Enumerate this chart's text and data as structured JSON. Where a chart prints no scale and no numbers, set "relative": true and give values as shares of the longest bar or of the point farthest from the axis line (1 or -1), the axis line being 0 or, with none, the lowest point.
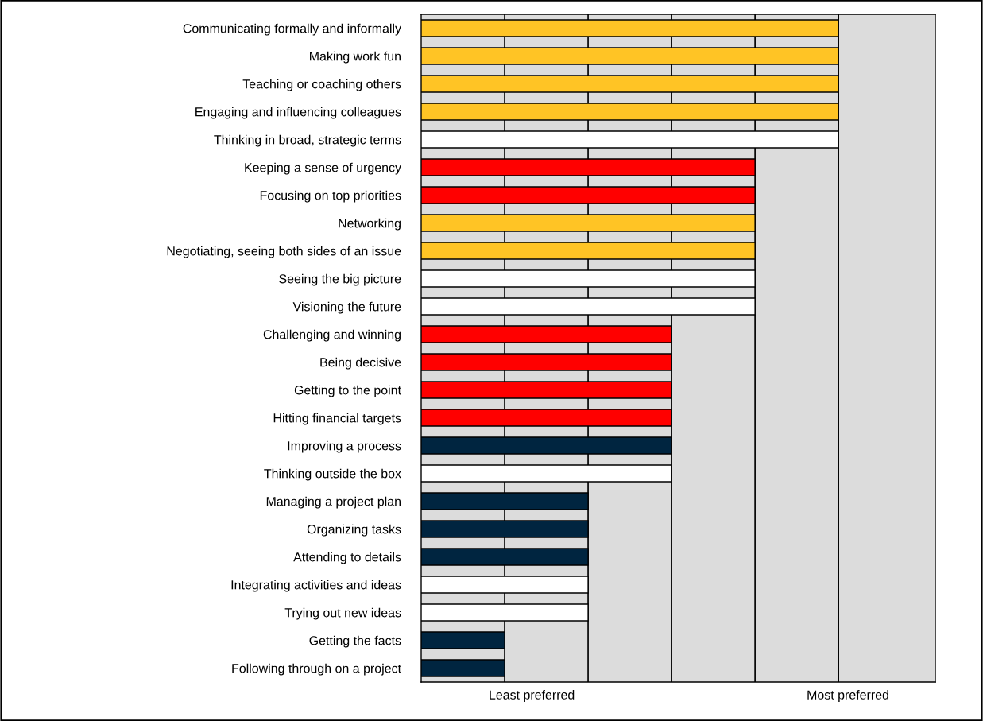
{
  "chart_data": {
    "type": "bar",
    "orientation": "horizontal",
    "relative": true,
    "grid": "x",
    "legend": false,
    "categories": [
      "Communicating formally and informally",
      "Making work fun",
      "Teaching or coaching others",
      "Engaging and influencing colleagues",
      "Thinking in broad, strategic terms",
      "Keeping a sense of urgency",
      "Focusing on top priorities",
      "Networking",
      "Negotiating, seeing both sides of an issue",
      "Seeing the big picture",
      "Visioning the future",
      "Challenging and winning",
      "Being decisive",
      "Getting to the point",
      "Hitting financial targets",
      "Improving a process",
      "Thinking outside the box",
      "Managing a project plan",
      "Organizing tasks",
      "Attending to details",
      "Integrating activities and ideas",
      "Trying out new ideas",
      "Getting the facts",
      "Following through on a project"
    ],
    "values": [
      1,
      1,
      1,
      1,
      1,
      0.8,
      0.8,
      0.8,
      0.8,
      0.8,
      0.8,
      0.6,
      0.6,
      0.6,
      0.6,
      0.6,
      0.6,
      0.4,
      0.4,
      0.4,
      0.4,
      0.4,
      0.2,
      0.2
    ],
    "colors": [
      "#ffc425",
      "#ffc425",
      "#ffc425",
      "#ffc425",
      "#ffffff",
      "#ff0000",
      "#ff0000",
      "#ffc425",
      "#ffc425",
      "#ffffff",
      "#ffffff",
      "#ff0000",
      "#ff0000",
      "#ff0000",
      "#ff0000",
      "#002540",
      "#ffffff",
      "#002540",
      "#002540",
      "#002540",
      "#ffffff",
      "#ffffff",
      "#002540",
      "#002540"
    ],
    "annotations": [
      "Least preferred",
      "Most preferred"
    ]
  }
}
